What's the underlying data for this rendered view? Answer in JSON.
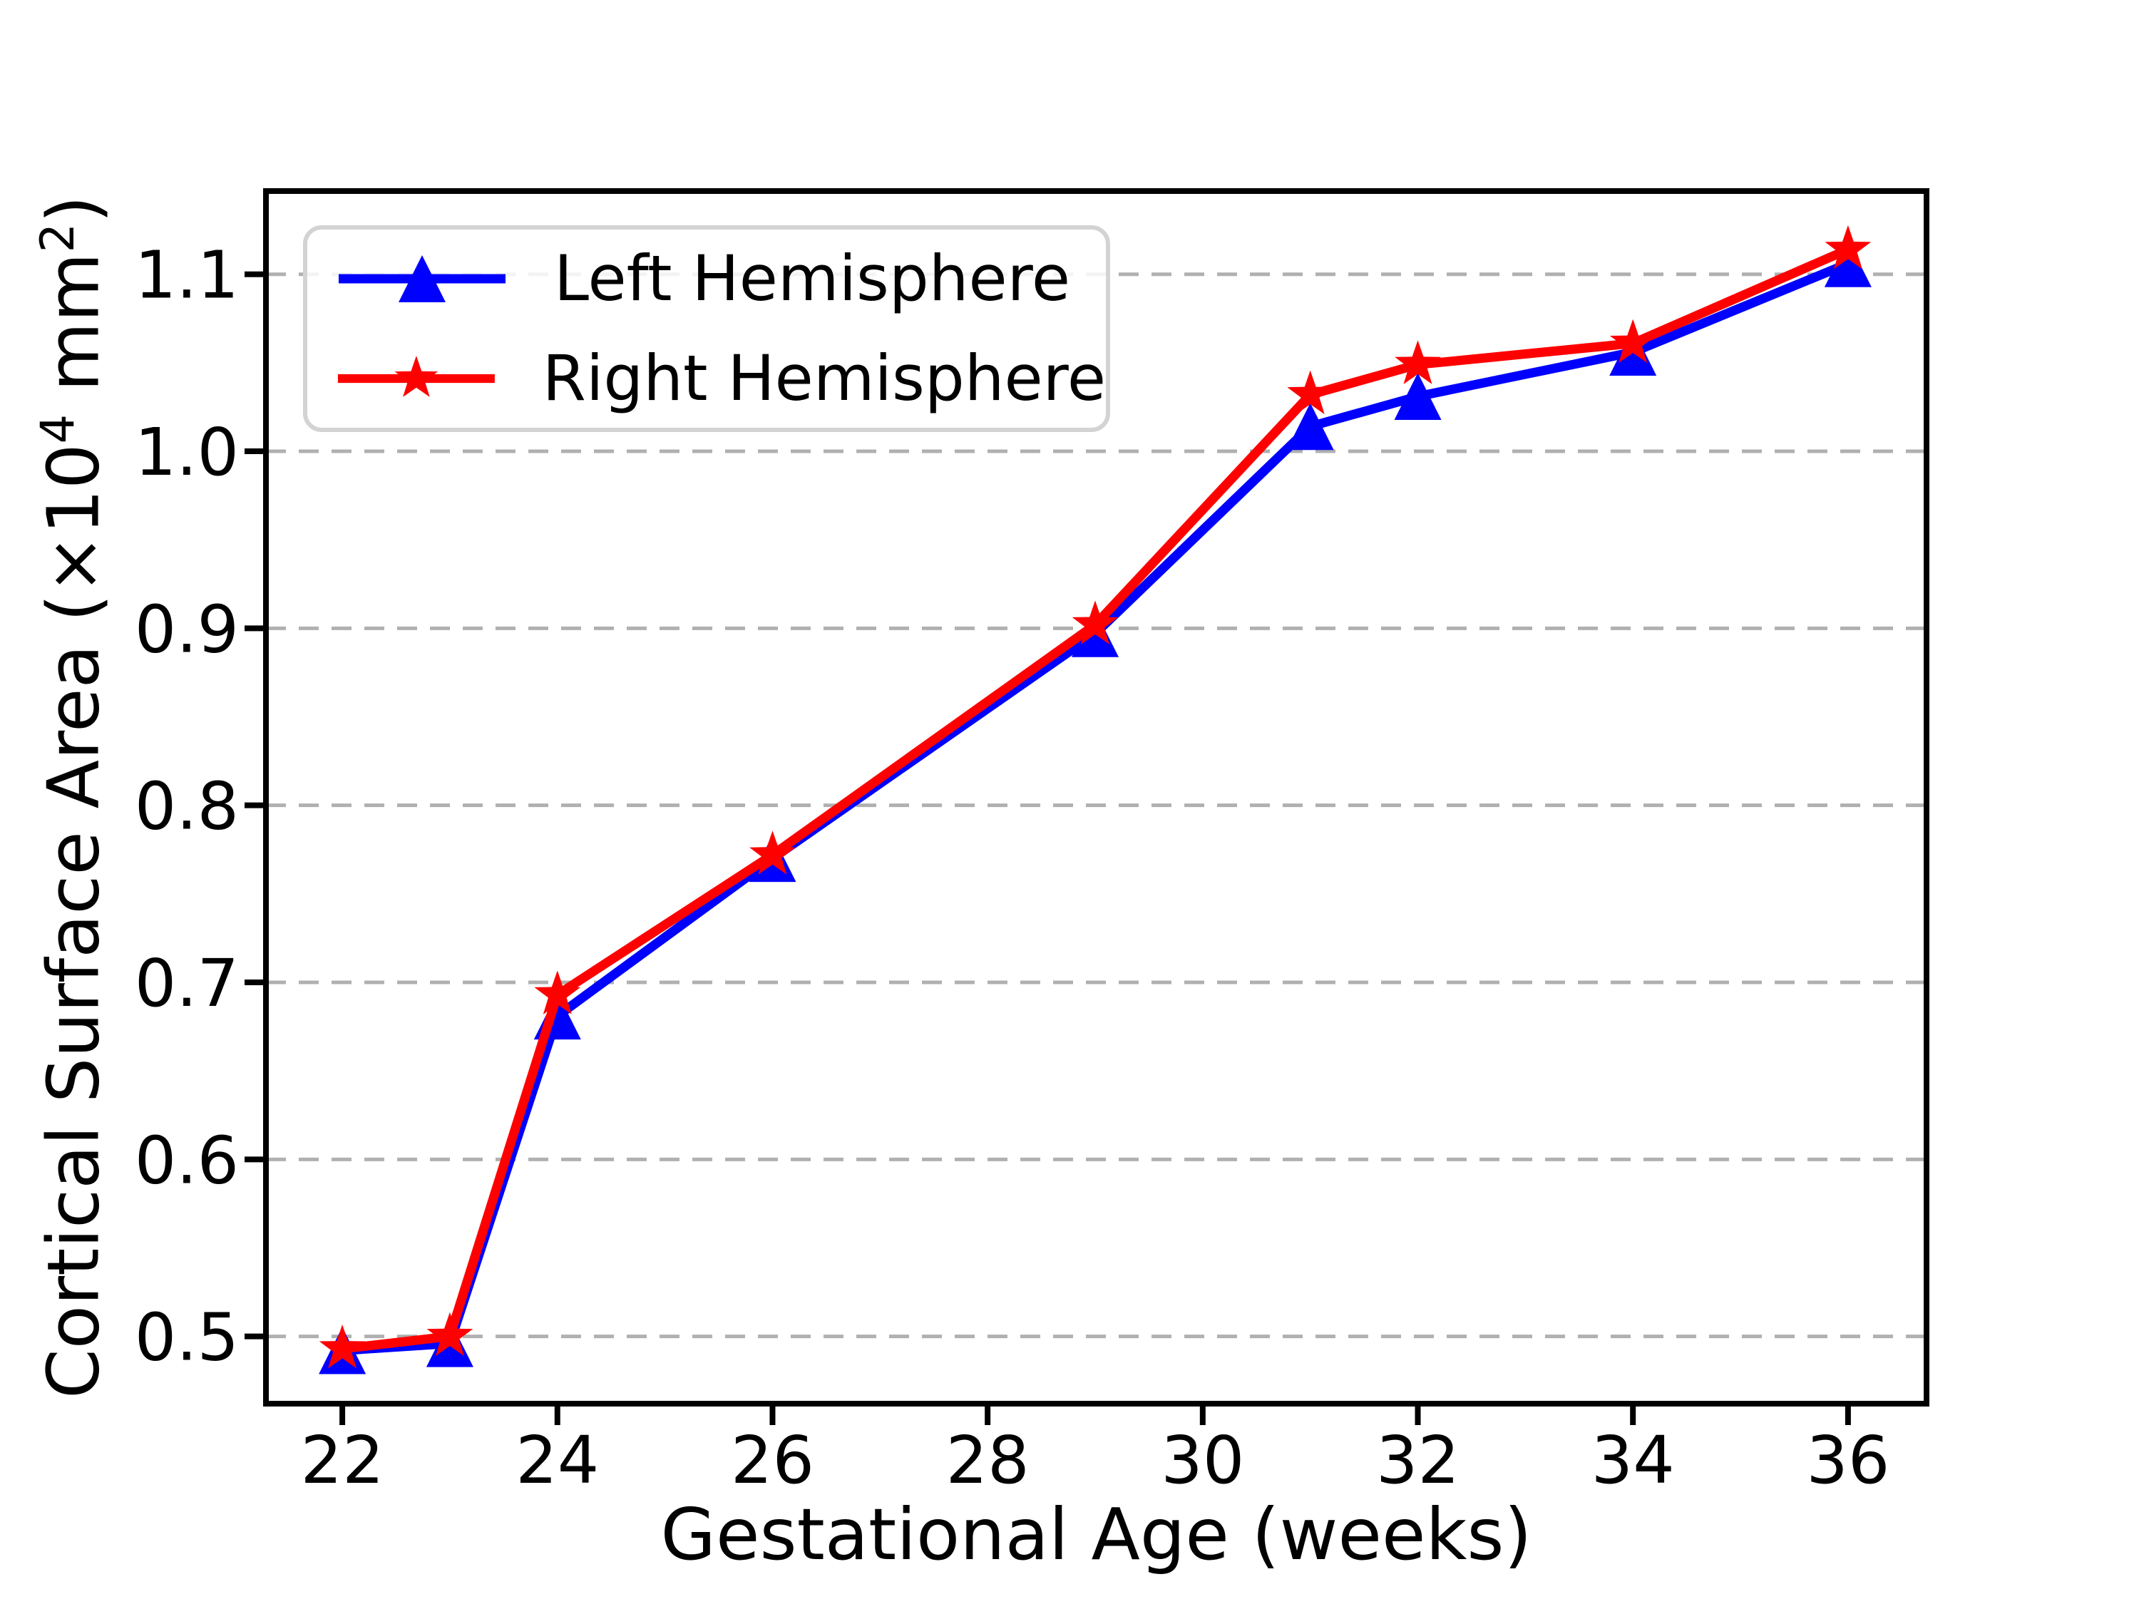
{
  "chart_data": {
    "type": "line",
    "title": "",
    "xlabel": "Gestational Age (weeks)",
    "ylabel": "Cortical Surface Area (×10⁴ mm²)",
    "ylabel_parts": {
      "prefix": "Cortical Surface Area (×10",
      "exp1": "4",
      "mid": " mm",
      "exp2": "2",
      "suffix": ")"
    },
    "x": [
      22,
      23,
      24,
      26,
      29,
      31,
      32,
      34,
      36
    ],
    "series": [
      {
        "name": "Left Hemisphere",
        "color": "#0000ff",
        "marker": "triangle-up",
        "values": [
          0.492,
          0.496,
          0.681,
          0.77,
          0.897,
          1.014,
          1.031,
          1.056,
          1.106
        ]
      },
      {
        "name": "Right Hemisphere",
        "color": "#ff0000",
        "marker": "star",
        "values": [
          0.493,
          0.5,
          0.693,
          0.772,
          0.902,
          1.032,
          1.049,
          1.061,
          1.114
        ]
      }
    ],
    "xticks": [
      22,
      24,
      26,
      28,
      30,
      32,
      34,
      36
    ],
    "yticks": [
      0.5,
      0.6,
      0.7,
      0.8,
      0.9,
      1.0,
      1.1
    ],
    "ytick_labels": [
      "0.5",
      "0.6",
      "0.7",
      "0.8",
      "0.9",
      "1.0",
      "1.1"
    ],
    "xlim": [
      21.29,
      36.73
    ],
    "ylim": [
      0.462,
      1.147
    ],
    "grid": {
      "axis": "y",
      "style": "dashed",
      "color": "#b0b0b0"
    },
    "legend": {
      "position": "upper-left",
      "border_color": "#d3d3d3",
      "background": "#ffffff"
    },
    "axis_color": "#000000"
  }
}
